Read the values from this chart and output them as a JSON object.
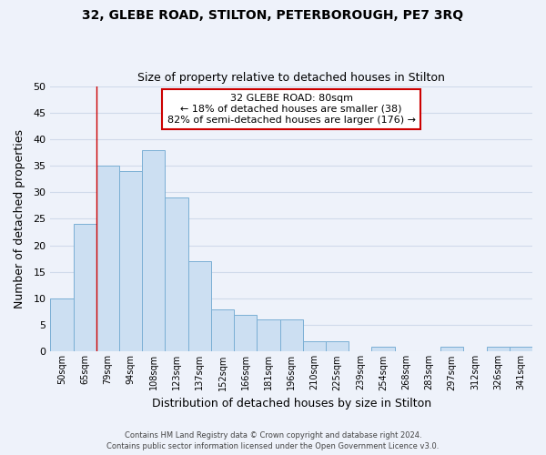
{
  "title": "32, GLEBE ROAD, STILTON, PETERBOROUGH, PE7 3RQ",
  "subtitle": "Size of property relative to detached houses in Stilton",
  "xlabel": "Distribution of detached houses by size in Stilton",
  "ylabel": "Number of detached properties",
  "bar_labels": [
    "50sqm",
    "65sqm",
    "79sqm",
    "94sqm",
    "108sqm",
    "123sqm",
    "137sqm",
    "152sqm",
    "166sqm",
    "181sqm",
    "196sqm",
    "210sqm",
    "225sqm",
    "239sqm",
    "254sqm",
    "268sqm",
    "283sqm",
    "297sqm",
    "312sqm",
    "326sqm",
    "341sqm"
  ],
  "bar_values": [
    10,
    24,
    35,
    34,
    38,
    29,
    17,
    8,
    7,
    6,
    6,
    2,
    2,
    0,
    1,
    0,
    0,
    1,
    0,
    1,
    1
  ],
  "bar_color": "#ccdff2",
  "bar_edge_color": "#7aafd4",
  "ylim": [
    0,
    50
  ],
  "yticks": [
    0,
    5,
    10,
    15,
    20,
    25,
    30,
    35,
    40,
    45,
    50
  ],
  "vline_x_index": 2,
  "vline_color": "#cc0000",
  "annotation_line1": "32 GLEBE ROAD: 80sqm",
  "annotation_line2": "← 18% of detached houses are smaller (38)",
  "annotation_line3": "82% of semi-detached houses are larger (176) →",
  "annotation_box_color": "#cc0000",
  "footer_line1": "Contains HM Land Registry data © Crown copyright and database right 2024.",
  "footer_line2": "Contains public sector information licensed under the Open Government Licence v3.0.",
  "bg_color": "#eef2fa",
  "grid_color": "#d0daea"
}
